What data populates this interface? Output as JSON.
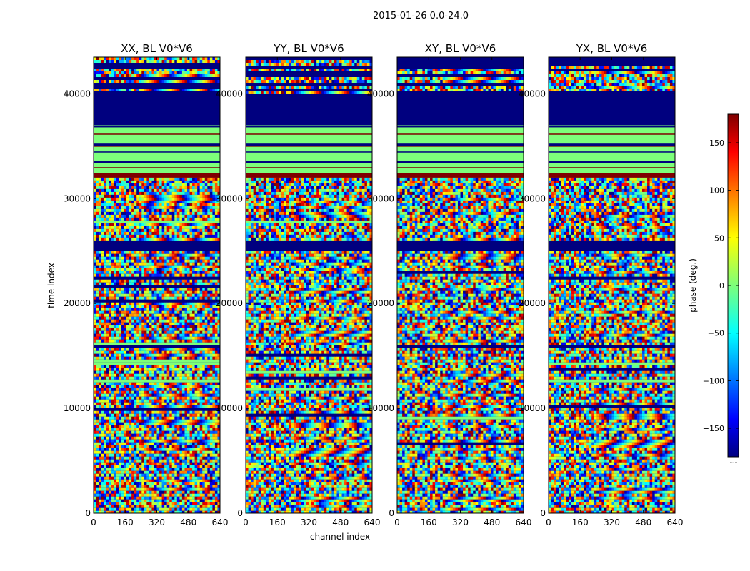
{
  "chart_data": {
    "type": "heatmap",
    "title": "2015-01-26 0.0-24.0",
    "xlabel": "channel index",
    "ylabel": "time index",
    "xlim": [
      0,
      640
    ],
    "ylim": [
      0,
      43500
    ],
    "x_ticks": [
      0,
      160,
      320,
      480,
      640
    ],
    "y_ticks": [
      0,
      10000,
      20000,
      30000,
      40000
    ],
    "panels": [
      {
        "title": "XX, BL V0*V6"
      },
      {
        "title": "YY, BL V0*V6"
      },
      {
        "title": "XY, BL V0*V6"
      },
      {
        "title": "YX, BL V0*V6"
      }
    ],
    "colorbar": {
      "label": "phase (deg.)",
      "range": [
        -180,
        180
      ],
      "ticks": [
        -150,
        -100,
        -50,
        0,
        50,
        100,
        150
      ],
      "colormap": "jet",
      "footnote": "......"
    },
    "bands": [
      {
        "from": 40000,
        "to": 43500,
        "kind": "mixed"
      },
      {
        "from": 37000,
        "to": 40000,
        "kind": "solid",
        "phase": -180
      },
      {
        "from": 32000,
        "to": 37000,
        "kind": "striped"
      },
      {
        "from": 26000,
        "to": 32000,
        "kind": "noisy"
      },
      {
        "from": 25000,
        "to": 26000,
        "kind": "solid",
        "phase": -180
      },
      {
        "from": 0,
        "to": 25000,
        "kind": "noisy"
      }
    ],
    "colors": {
      "jet_dark_blue": "#00007f",
      "jet_blue": "#0000ff",
      "jet_cyan": "#00ffff",
      "jet_green": "#7dff7a",
      "jet_yellow": "#ffff00",
      "jet_red": "#ff0000",
      "jet_dark_red": "#7f0000"
    }
  }
}
